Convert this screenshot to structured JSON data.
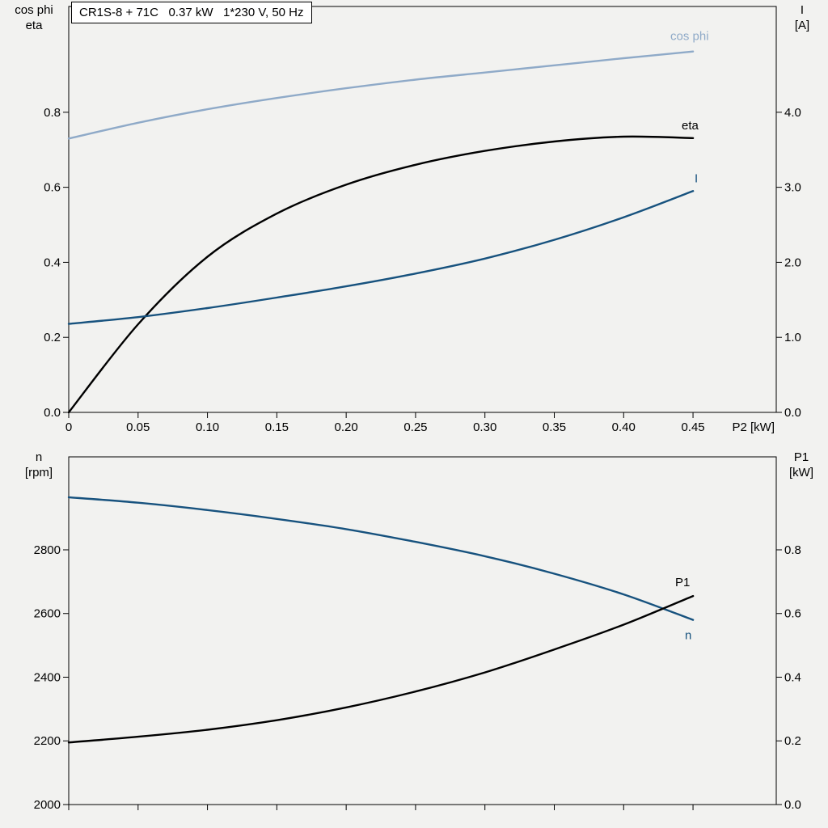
{
  "colors": {
    "background": "#f2f2f0",
    "axis": "#000000",
    "light_blue": "#8faac8",
    "dark_blue": "#17527e",
    "black_curve": "#000000"
  },
  "chart_data": [
    {
      "type": "line",
      "title": "CR1S-8 + 71C   0.37 kW   1*230 V, 50 Hz",
      "x": {
        "min": 0,
        "max": 0.51,
        "label": "P2 [kW]",
        "tick_values": [
          0,
          0.05,
          0.1,
          0.15,
          0.2,
          0.25,
          0.3,
          0.35,
          0.4,
          0.45
        ],
        "tick_labels": [
          "0",
          "0.05",
          "0.10",
          "0.15",
          "0.20",
          "0.25",
          "0.30",
          "0.35",
          "0.40",
          "0.45"
        ]
      },
      "y_left": {
        "min": 0,
        "max": 1.082,
        "label_lines": [
          "cos phi",
          "eta"
        ],
        "tick_values": [
          0,
          0.2,
          0.4,
          0.6,
          0.8
        ],
        "tick_labels": [
          "0.0",
          "0.2",
          "0.4",
          "0.6",
          "0.8"
        ]
      },
      "y_right": {
        "min": 0,
        "max": 5.41,
        "label_lines": [
          "I",
          "[A]"
        ],
        "tick_values": [
          0,
          1,
          2,
          3,
          4
        ],
        "tick_labels": [
          "0.0",
          "1.0",
          "2.0",
          "3.0",
          "4.0"
        ]
      },
      "x_points": [
        0,
        0.05,
        0.1,
        0.15,
        0.2,
        0.25,
        0.3,
        0.35,
        0.4,
        0.45
      ],
      "series": [
        {
          "id": "cos-phi",
          "name": "cos phi",
          "axis": "left",
          "color": "#8faac8",
          "values": [
            0.73,
            0.772,
            0.808,
            0.838,
            0.864,
            0.887,
            0.906,
            0.925,
            0.944,
            0.962
          ],
          "label_offset": [
            -28,
            -14
          ]
        },
        {
          "id": "eta",
          "name": "eta",
          "axis": "left",
          "color": "#000000",
          "values": [
            0,
            0.235,
            0.415,
            0.53,
            0.607,
            0.66,
            0.697,
            0.722,
            0.735,
            0.731
          ],
          "label_offset": [
            -14,
            -11
          ]
        },
        {
          "id": "current",
          "name": "I",
          "axis": "right",
          "color": "#17527e",
          "values": [
            1.18,
            1.27,
            1.39,
            1.53,
            1.68,
            1.85,
            2.05,
            2.3,
            2.6,
            2.95
          ],
          "label_offset": [
            2,
            -11
          ]
        }
      ]
    },
    {
      "type": "line",
      "title": "",
      "x": {
        "min": 0,
        "max": 0.51,
        "label": "",
        "tick_values": [
          0,
          0.05,
          0.1,
          0.15,
          0.2,
          0.25,
          0.3,
          0.35,
          0.4,
          0.45
        ],
        "tick_labels": [
          "",
          "",
          "",
          "",
          "",
          "",
          "",
          "",
          "",
          ""
        ]
      },
      "y_left": {
        "min": 2000,
        "max": 3092,
        "label_lines": [
          "n",
          "[rpm]"
        ],
        "tick_values": [
          2000,
          2200,
          2400,
          2600,
          2800
        ],
        "tick_labels": [
          "2000",
          "2200",
          "2400",
          "2600",
          "2800"
        ]
      },
      "y_right": {
        "min": 0,
        "max": 1.092,
        "label_lines": [
          "P1",
          "[kW]"
        ],
        "tick_values": [
          0,
          0.2,
          0.4,
          0.6,
          0.8
        ],
        "tick_labels": [
          "0.0",
          "0.2",
          "0.4",
          "0.6",
          "0.8"
        ]
      },
      "x_points": [
        0,
        0.05,
        0.1,
        0.15,
        0.2,
        0.25,
        0.3,
        0.35,
        0.4,
        0.45
      ],
      "series": [
        {
          "id": "speed",
          "name": "n",
          "axis": "left",
          "color": "#17527e",
          "values": [
            2965,
            2948,
            2925,
            2897,
            2865,
            2825,
            2780,
            2725,
            2660,
            2580
          ],
          "label_offset": [
            -10,
            24
          ]
        },
        {
          "id": "p1",
          "name": "P1",
          "axis": "right",
          "color": "#000000",
          "values": [
            0.195,
            0.213,
            0.235,
            0.265,
            0.305,
            0.355,
            0.415,
            0.487,
            0.565,
            0.655
          ],
          "label_offset": [
            -22,
            -12
          ]
        }
      ]
    }
  ]
}
